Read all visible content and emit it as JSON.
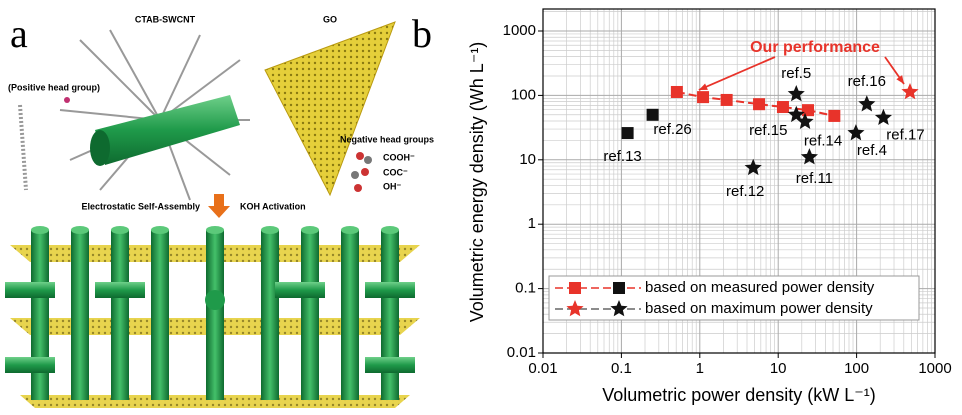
{
  "panel_labels": [
    "a",
    "b"
  ],
  "illustration": {
    "swcnt_label": "CTAB-SWCNT",
    "go_label": "GO",
    "positive_label": "(Positive head group)",
    "negative_label": "Negative head groups",
    "groups": [
      "COOH⁻",
      "COC⁻",
      "OH⁻"
    ],
    "step_left": "Electrostatic Self-Assembly",
    "step_right": "KOH Activation"
  },
  "chart_data": {
    "type": "scatter",
    "xlabel": "Volumetric power density (kW L⁻¹)",
    "ylabel": "Volumetric energy density (Wh L⁻¹)",
    "log_x": true,
    "log_y": true,
    "grid": true,
    "xlim": [
      0.01,
      1000
    ],
    "ylim": [
      0.01,
      1000
    ],
    "xticks": [
      0.01,
      0.1,
      1,
      10,
      100,
      1000
    ],
    "yticks": [
      0.01,
      0.1,
      1,
      10,
      100,
      1000
    ],
    "annotation": "Our performance",
    "legend": "lower left",
    "series": [
      {
        "name": "based on measured power density",
        "color": "#e8332a",
        "marker": "square",
        "line": true,
        "x": [
          0.51,
          1.1,
          2.2,
          5.7,
          11.5,
          24,
          52
        ],
        "values": [
          113,
          94,
          85,
          73,
          66,
          59,
          48
        ]
      },
      {
        "color": "#111111",
        "marker": "square",
        "labels": [
          "ref.26",
          "ref.13"
        ],
        "x": [
          0.25,
          0.12
        ],
        "values": [
          50,
          26
        ]
      },
      {
        "name": "based on maximum power density",
        "color": "#e8332a",
        "marker": "star",
        "x": [
          480
        ],
        "values": [
          113
        ]
      },
      {
        "color": "#111111",
        "marker": "star",
        "labels": [
          "ref.5",
          "ref.15",
          "ref.14",
          "ref.12",
          "ref.11",
          "ref.16",
          "ref.4",
          "ref.17"
        ],
        "x": [
          17,
          17,
          22,
          4.8,
          25,
          135,
          98,
          220
        ],
        "values": [
          105,
          50,
          39,
          7.5,
          11,
          73,
          26,
          45
        ]
      }
    ]
  }
}
